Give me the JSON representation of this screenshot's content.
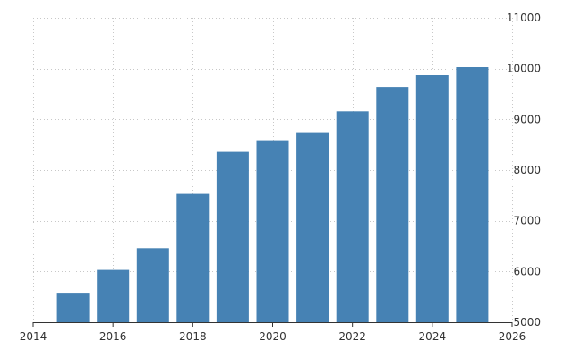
{
  "chart_data": {
    "type": "bar",
    "x": [
      2015,
      2016,
      2017,
      2018,
      2019,
      2020,
      2021,
      2022,
      2023,
      2024,
      2025
    ],
    "values": [
      5580,
      6030,
      6460,
      7530,
      8360,
      8590,
      8730,
      9160,
      9640,
      9870,
      10030
    ],
    "xlim": [
      2014,
      2026
    ],
    "ylim": [
      5000,
      11000
    ],
    "x_ticks": [
      "2014",
      "2016",
      "2018",
      "2020",
      "2022",
      "2024",
      "2026"
    ],
    "y_ticks": [
      "5000",
      "6000",
      "7000",
      "8000",
      "9000",
      "10000",
      "11000"
    ],
    "y_axis_side": "right",
    "grid": true,
    "bar_color": "#4682b4",
    "title": "",
    "xlabel": "",
    "ylabel": ""
  }
}
